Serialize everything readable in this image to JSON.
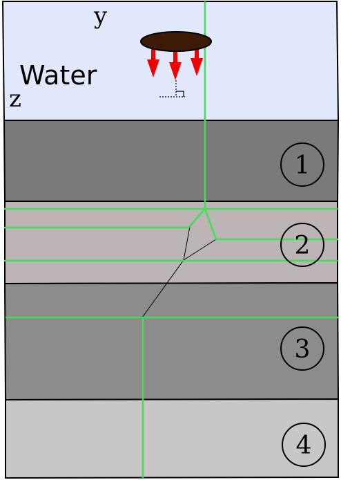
{
  "labels": {
    "y_axis": "y",
    "z_axis": "z",
    "water": "Water"
  },
  "layers": [
    {
      "number": "1",
      "color": "#7a7a7a"
    },
    {
      "number": "2",
      "color": "#bdb5b5"
    },
    {
      "number": "3",
      "color": "#8c8c8c"
    },
    {
      "number": "4",
      "color": "#c8c6c6"
    }
  ],
  "colors": {
    "water": "#e1e8fb",
    "source_disc": "#3d1a06",
    "arrows": "#ee0000",
    "ray_paths": "#44dd55",
    "outline": "#000000"
  },
  "icons": [
    "source-disc-icon",
    "arrow-down-icon",
    "right-angle-icon"
  ]
}
